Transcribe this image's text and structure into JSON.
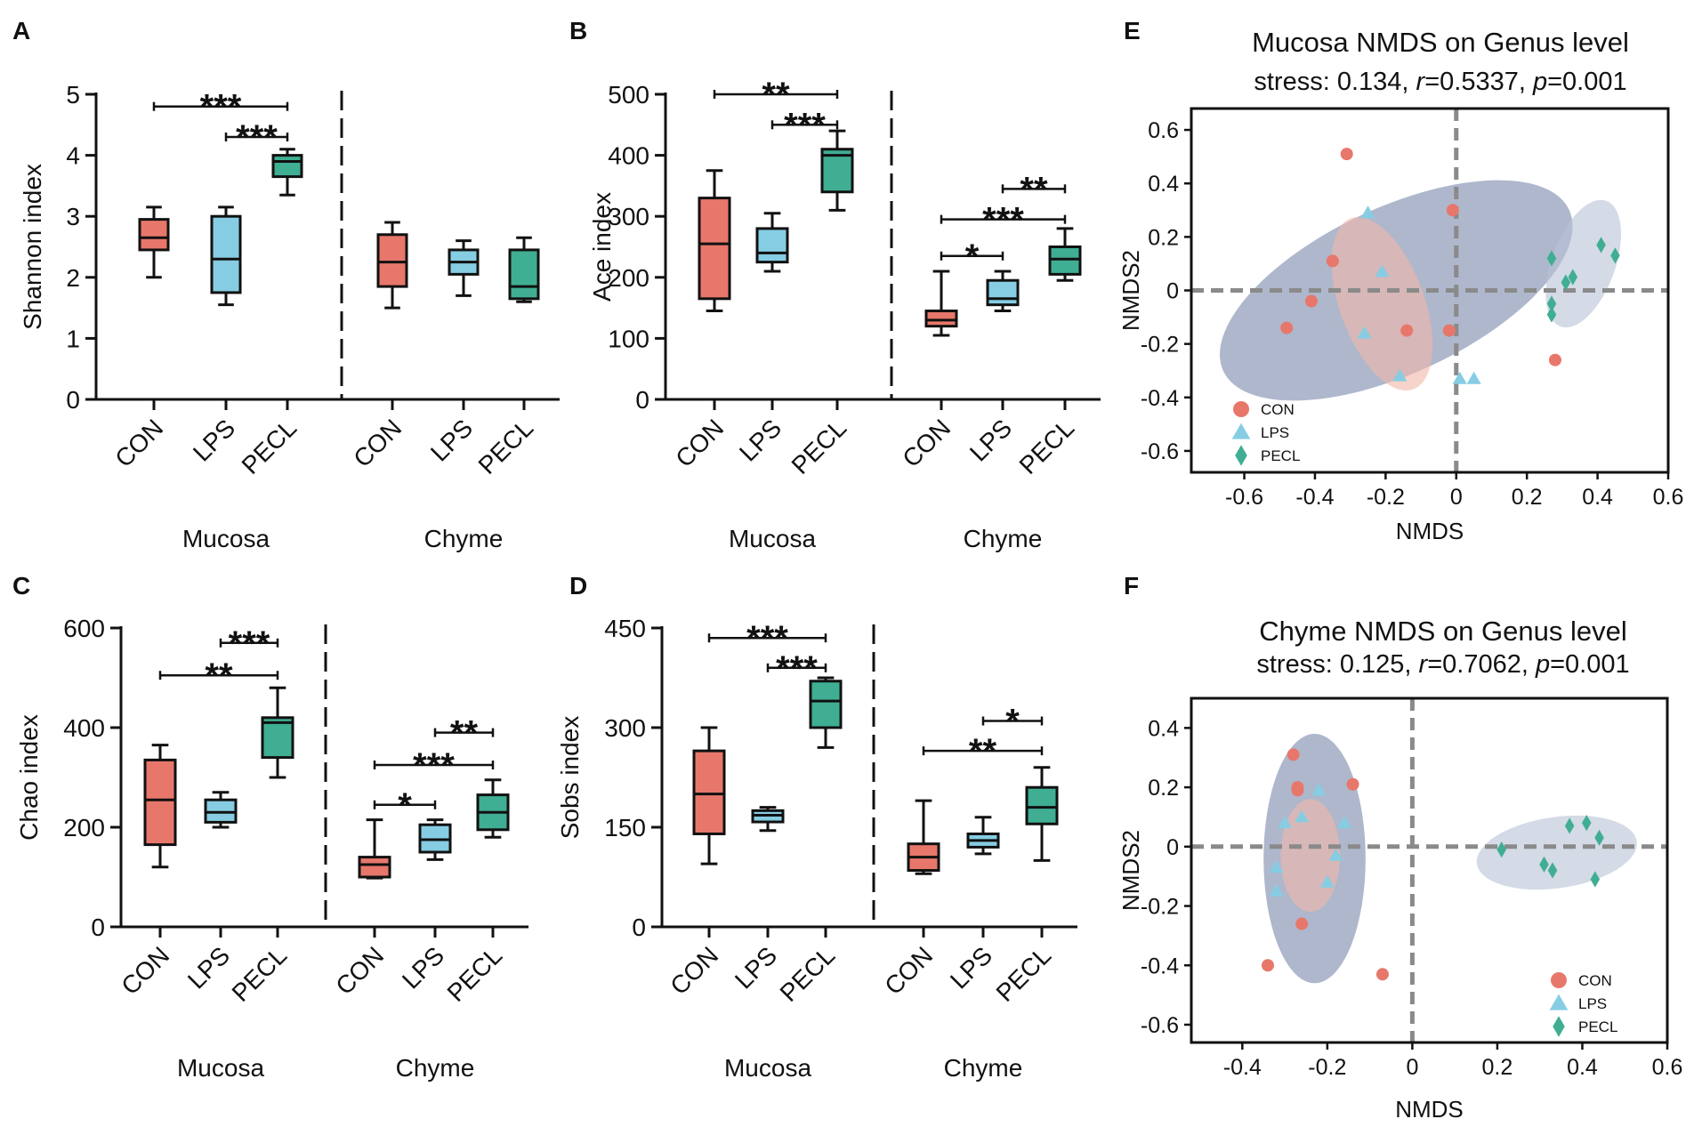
{
  "figure": {
    "colors": {
      "CON": "#e8776b",
      "LPS": "#86cde3",
      "PECL": "#3fae93",
      "ink": "#111111",
      "ellipse_blue": "#5d6f9a",
      "ellipse_pink": "#f2b7a8",
      "ellipse_light": "#b7c2d6",
      "dash": "#8a8a8a"
    }
  },
  "chart_data": [
    {
      "panel": "A",
      "type": "box",
      "ylabel": "Shannon index",
      "ylim": [
        0,
        5
      ],
      "yticks": [
        0,
        1,
        2,
        3,
        4,
        5
      ],
      "sites": [
        "Mucosa",
        "Chyme"
      ],
      "groups": [
        "CON",
        "LPS",
        "PECL"
      ],
      "boxes": [
        {
          "site": "Mucosa",
          "group": "CON",
          "min": 2.0,
          "q1": 2.45,
          "median": 2.65,
          "q3": 2.95,
          "max": 3.15
        },
        {
          "site": "Mucosa",
          "group": "LPS",
          "min": 1.55,
          "q1": 1.75,
          "median": 2.3,
          "q3": 3.0,
          "max": 3.15
        },
        {
          "site": "Mucosa",
          "group": "PECL",
          "min": 3.35,
          "q1": 3.65,
          "median": 3.9,
          "q3": 4.0,
          "max": 4.1
        },
        {
          "site": "Chyme",
          "group": "CON",
          "min": 1.5,
          "q1": 1.85,
          "median": 2.25,
          "q3": 2.7,
          "max": 2.9
        },
        {
          "site": "Chyme",
          "group": "LPS",
          "min": 1.7,
          "q1": 2.05,
          "median": 2.25,
          "q3": 2.45,
          "max": 2.6
        },
        {
          "site": "Chyme",
          "group": "PECL",
          "min": 1.6,
          "q1": 1.65,
          "median": 1.85,
          "q3": 2.45,
          "max": 2.65
        }
      ],
      "significance": [
        {
          "site": "Mucosa",
          "from": "CON",
          "to": "PECL",
          "label": "***",
          "y": 4.8
        },
        {
          "site": "Mucosa",
          "from": "LPS",
          "to": "PECL",
          "label": "***",
          "y": 4.3
        }
      ]
    },
    {
      "panel": "B",
      "type": "box",
      "ylabel": "Ace index",
      "ylim": [
        0,
        500
      ],
      "yticks": [
        0,
        100,
        200,
        300,
        400,
        500
      ],
      "sites": [
        "Mucosa",
        "Chyme"
      ],
      "groups": [
        "CON",
        "LPS",
        "PECL"
      ],
      "boxes": [
        {
          "site": "Mucosa",
          "group": "CON",
          "min": 145,
          "q1": 165,
          "median": 255,
          "q3": 330,
          "max": 375
        },
        {
          "site": "Mucosa",
          "group": "LPS",
          "min": 210,
          "q1": 225,
          "median": 240,
          "q3": 280,
          "max": 305
        },
        {
          "site": "Mucosa",
          "group": "PECL",
          "min": 310,
          "q1": 340,
          "median": 400,
          "q3": 410,
          "max": 440
        },
        {
          "site": "Chyme",
          "group": "CON",
          "min": 105,
          "q1": 120,
          "median": 130,
          "q3": 145,
          "max": 210
        },
        {
          "site": "Chyme",
          "group": "LPS",
          "min": 145,
          "q1": 155,
          "median": 165,
          "q3": 195,
          "max": 210
        },
        {
          "site": "Chyme",
          "group": "PECL",
          "min": 195,
          "q1": 205,
          "median": 230,
          "q3": 250,
          "max": 280
        }
      ],
      "significance": [
        {
          "site": "Mucosa",
          "from": "CON",
          "to": "PECL",
          "label": "**",
          "y": 500
        },
        {
          "site": "Mucosa",
          "from": "LPS",
          "to": "PECL",
          "label": "***",
          "y": 450
        },
        {
          "site": "Chyme",
          "from": "CON",
          "to": "LPS",
          "label": "*",
          "y": 235
        },
        {
          "site": "Chyme",
          "from": "CON",
          "to": "PECL",
          "label": "***",
          "y": 295
        },
        {
          "site": "Chyme",
          "from": "LPS",
          "to": "PECL",
          "label": "**",
          "y": 345
        }
      ]
    },
    {
      "panel": "C",
      "type": "box",
      "ylabel": "Chao  index",
      "ylim": [
        0,
        600
      ],
      "yticks": [
        0,
        200,
        400,
        600
      ],
      "sites": [
        "Mucosa",
        "Chyme"
      ],
      "groups": [
        "CON",
        "LPS",
        "PECL"
      ],
      "boxes": [
        {
          "site": "Mucosa",
          "group": "CON",
          "min": 120,
          "q1": 165,
          "median": 255,
          "q3": 335,
          "max": 365
        },
        {
          "site": "Mucosa",
          "group": "LPS",
          "min": 200,
          "q1": 210,
          "median": 230,
          "q3": 255,
          "max": 270
        },
        {
          "site": "Mucosa",
          "group": "PECL",
          "min": 300,
          "q1": 340,
          "median": 410,
          "q3": 420,
          "max": 480
        },
        {
          "site": "Chyme",
          "group": "CON",
          "min": 98,
          "q1": 100,
          "median": 125,
          "q3": 140,
          "max": 215
        },
        {
          "site": "Chyme",
          "group": "LPS",
          "min": 135,
          "q1": 150,
          "median": 175,
          "q3": 205,
          "max": 215
        },
        {
          "site": "Chyme",
          "group": "PECL",
          "min": 180,
          "q1": 195,
          "median": 230,
          "q3": 265,
          "max": 295
        }
      ],
      "significance": [
        {
          "site": "Mucosa",
          "from": "CON",
          "to": "PECL",
          "label": "**",
          "y": 505
        },
        {
          "site": "Mucosa",
          "from": "LPS",
          "to": "PECL",
          "label": "***",
          "y": 570
        },
        {
          "site": "Chyme",
          "from": "CON",
          "to": "LPS",
          "label": "*",
          "y": 245
        },
        {
          "site": "Chyme",
          "from": "CON",
          "to": "PECL",
          "label": "***",
          "y": 325
        },
        {
          "site": "Chyme",
          "from": "LPS",
          "to": "PECL",
          "label": "**",
          "y": 390
        }
      ]
    },
    {
      "panel": "D",
      "type": "box",
      "ylabel": "Sobs index",
      "ylim": [
        0,
        450
      ],
      "yticks": [
        0,
        150,
        300,
        450
      ],
      "sites": [
        "Mucosa",
        "Chyme"
      ],
      "groups": [
        "CON",
        "LPS",
        "PECL"
      ],
      "boxes": [
        {
          "site": "Mucosa",
          "group": "CON",
          "min": 95,
          "q1": 140,
          "median": 200,
          "q3": 265,
          "max": 300
        },
        {
          "site": "Mucosa",
          "group": "LPS",
          "min": 145,
          "q1": 158,
          "median": 168,
          "q3": 175,
          "max": 180
        },
        {
          "site": "Mucosa",
          "group": "PECL",
          "min": 270,
          "q1": 300,
          "median": 340,
          "q3": 370,
          "max": 375
        },
        {
          "site": "Chyme",
          "group": "CON",
          "min": 80,
          "q1": 85,
          "median": 105,
          "q3": 125,
          "max": 190
        },
        {
          "site": "Chyme",
          "group": "LPS",
          "min": 110,
          "q1": 120,
          "median": 130,
          "q3": 140,
          "max": 165
        },
        {
          "site": "Chyme",
          "group": "PECL",
          "min": 100,
          "q1": 155,
          "median": 180,
          "q3": 210,
          "max": 240
        }
      ],
      "significance": [
        {
          "site": "Mucosa",
          "from": "CON",
          "to": "PECL",
          "label": "***",
          "y": 435
        },
        {
          "site": "Mucosa",
          "from": "LPS",
          "to": "PECL",
          "label": "***",
          "y": 390
        },
        {
          "site": "Chyme",
          "from": "CON",
          "to": "PECL",
          "label": "**",
          "y": 265
        },
        {
          "site": "Chyme",
          "from": "LPS",
          "to": "PECL",
          "label": "*",
          "y": 310
        }
      ]
    },
    {
      "panel": "E",
      "type": "scatter",
      "title": "Mucosa NMDS on Genus level",
      "stats": {
        "prefix": "stress: 0.134, ",
        "r_label": "r",
        "r_value": "=0.5337, ",
        "p_label": "p",
        "p_value": "=0.001"
      },
      "xlabel": "NMDS",
      "ylabel": "NMDS2",
      "xlim": [
        -0.75,
        0.6
      ],
      "ylim": [
        -0.68,
        0.68
      ],
      "xticks": [
        -0.6,
        -0.4,
        -0.2,
        0,
        0.2,
        0.4,
        0.6
      ],
      "xtick_labels": [
        "-0.6",
        "-0.4",
        "-0.2",
        "0",
        "0.2",
        "0.4",
        "0.6"
      ],
      "yticks": [
        -0.6,
        -0.4,
        -0.2,
        0,
        0.2,
        0.4,
        0.6
      ],
      "ytick_labels": [
        "-0.6",
        "-0.4",
        "-0.2",
        "0",
        "0.2",
        "0.4",
        "0.6"
      ],
      "legend": {
        "position": "bottom-left",
        "entries": [
          "CON",
          "LPS",
          "PECL"
        ]
      },
      "ellipses": [
        {
          "group": "CON-LPS",
          "cx": -0.17,
          "cy": 0.0,
          "rx": 0.54,
          "ry": 0.31,
          "angle_deg": -25,
          "color": "ellipse_blue",
          "opacity": 0.5
        },
        {
          "group": "CON",
          "cx": -0.21,
          "cy": -0.05,
          "rx": 0.12,
          "ry": 0.34,
          "angle_deg": -20,
          "color": "ellipse_pink",
          "opacity": 0.6
        },
        {
          "group": "PECL",
          "cx": 0.36,
          "cy": 0.1,
          "rx": 0.09,
          "ry": 0.25,
          "angle_deg": 20,
          "color": "ellipse_light",
          "opacity": 0.6
        }
      ],
      "points": [
        {
          "group": "CON",
          "x": -0.31,
          "y": 0.51
        },
        {
          "group": "CON",
          "x": -0.01,
          "y": 0.3
        },
        {
          "group": "CON",
          "x": -0.35,
          "y": 0.11
        },
        {
          "group": "CON",
          "x": -0.41,
          "y": -0.04
        },
        {
          "group": "CON",
          "x": -0.48,
          "y": -0.14
        },
        {
          "group": "CON",
          "x": -0.14,
          "y": -0.15
        },
        {
          "group": "CON",
          "x": -0.02,
          "y": -0.15
        },
        {
          "group": "CON",
          "x": 0.28,
          "y": -0.26
        },
        {
          "group": "LPS",
          "x": -0.25,
          "y": 0.29
        },
        {
          "group": "LPS",
          "x": -0.21,
          "y": 0.07
        },
        {
          "group": "LPS",
          "x": -0.26,
          "y": -0.16
        },
        {
          "group": "LPS",
          "x": -0.16,
          "y": -0.32
        },
        {
          "group": "LPS",
          "x": 0.01,
          "y": -0.33
        },
        {
          "group": "LPS",
          "x": 0.05,
          "y": -0.33
        },
        {
          "group": "PECL",
          "x": 0.27,
          "y": 0.12
        },
        {
          "group": "PECL",
          "x": 0.31,
          "y": 0.03
        },
        {
          "group": "PECL",
          "x": 0.33,
          "y": 0.05
        },
        {
          "group": "PECL",
          "x": 0.27,
          "y": -0.05
        },
        {
          "group": "PECL",
          "x": 0.27,
          "y": -0.09
        },
        {
          "group": "PECL",
          "x": 0.41,
          "y": 0.17
        },
        {
          "group": "PECL",
          "x": 0.45,
          "y": 0.13
        }
      ]
    },
    {
      "panel": "F",
      "type": "scatter",
      "title": "Chyme NMDS on Genus level",
      "stats": {
        "prefix": "stress: 0.125, ",
        "r_label": "r",
        "r_value": "=0.7062, ",
        "p_label": "p",
        "p_value": "=0.001"
      },
      "xlabel": "NMDS",
      "ylabel": "NMDS2",
      "xlim": [
        -0.52,
        0.6
      ],
      "ylim": [
        -0.66,
        0.5
      ],
      "xticks": [
        -0.4,
        -0.2,
        0,
        0.2,
        0.4,
        0.6
      ],
      "xtick_labels": [
        "-0.4",
        "-0.2",
        "0",
        "0.2",
        "0.4",
        "0.6"
      ],
      "yticks": [
        -0.6,
        -0.4,
        -0.2,
        0,
        0.2,
        0.4
      ],
      "ytick_labels": [
        "-0.6",
        "-0.4",
        "-0.2",
        "0",
        "0.2",
        "0.4"
      ],
      "legend": {
        "position": "bottom-right",
        "entries": [
          "CON",
          "LPS",
          "PECL"
        ]
      },
      "ellipses": [
        {
          "group": "CON-LPS",
          "cx": -0.23,
          "cy": -0.04,
          "rx": 0.12,
          "ry": 0.42,
          "angle_deg": 0,
          "color": "ellipse_blue",
          "opacity": 0.5
        },
        {
          "group": "CON",
          "cx": -0.24,
          "cy": -0.03,
          "rx": 0.07,
          "ry": 0.19,
          "angle_deg": 0,
          "color": "ellipse_pink",
          "opacity": 0.6
        },
        {
          "group": "PECL",
          "cx": 0.34,
          "cy": -0.02,
          "rx": 0.19,
          "ry": 0.12,
          "angle_deg": -8,
          "color": "ellipse_light",
          "opacity": 0.6
        }
      ],
      "points": [
        {
          "group": "CON",
          "x": -0.28,
          "y": 0.31
        },
        {
          "group": "CON",
          "x": -0.27,
          "y": 0.19
        },
        {
          "group": "CON",
          "x": -0.27,
          "y": 0.2
        },
        {
          "group": "CON",
          "x": -0.14,
          "y": 0.21
        },
        {
          "group": "CON",
          "x": -0.26,
          "y": -0.26
        },
        {
          "group": "CON",
          "x": -0.34,
          "y": -0.4
        },
        {
          "group": "CON",
          "x": -0.07,
          "y": -0.43
        },
        {
          "group": "LPS",
          "x": -0.22,
          "y": 0.19
        },
        {
          "group": "LPS",
          "x": -0.26,
          "y": 0.1
        },
        {
          "group": "LPS",
          "x": -0.3,
          "y": 0.08
        },
        {
          "group": "LPS",
          "x": -0.16,
          "y": 0.08
        },
        {
          "group": "LPS",
          "x": -0.32,
          "y": -0.07
        },
        {
          "group": "LPS",
          "x": -0.18,
          "y": -0.03
        },
        {
          "group": "LPS",
          "x": -0.2,
          "y": -0.12
        },
        {
          "group": "LPS",
          "x": -0.32,
          "y": -0.15
        },
        {
          "group": "PECL",
          "x": 0.21,
          "y": -0.01
        },
        {
          "group": "PECL",
          "x": 0.37,
          "y": 0.07
        },
        {
          "group": "PECL",
          "x": 0.41,
          "y": 0.08
        },
        {
          "group": "PECL",
          "x": 0.44,
          "y": 0.03
        },
        {
          "group": "PECL",
          "x": 0.31,
          "y": -0.06
        },
        {
          "group": "PECL",
          "x": 0.33,
          "y": -0.08
        },
        {
          "group": "PECL",
          "x": 0.43,
          "y": -0.11
        }
      ]
    }
  ]
}
